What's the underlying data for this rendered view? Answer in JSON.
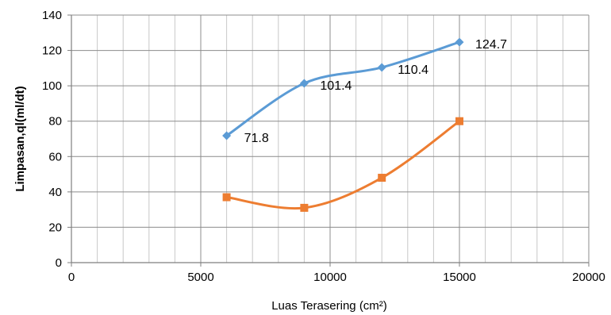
{
  "chart_data": {
    "type": "line",
    "title": "",
    "xlabel": "Luas Terasering (cm²)",
    "ylabel": "Limpasan,ql(ml/dt)",
    "xlim": [
      0,
      20000
    ],
    "ylim": [
      0,
      140
    ],
    "xticks": [
      0,
      5000,
      10000,
      15000,
      20000
    ],
    "yticks": [
      0,
      20,
      40,
      60,
      80,
      100,
      120,
      140
    ],
    "x_minor_step": 1000,
    "grid": true,
    "smooth": true,
    "legend": "none",
    "series": [
      {
        "color": "#5b9bd5",
        "marker": "diamond",
        "x": [
          6000,
          9000,
          12000,
          15000
        ],
        "y": [
          71.8,
          101.4,
          110.4,
          124.7
        ],
        "labels": [
          "71.8",
          "101.4",
          "110.4",
          "124.7"
        ]
      },
      {
        "color": "#ed7d31",
        "marker": "square",
        "x": [
          6000,
          9000,
          12000,
          15000
        ],
        "y": [
          37,
          31,
          48,
          80
        ]
      }
    ]
  }
}
